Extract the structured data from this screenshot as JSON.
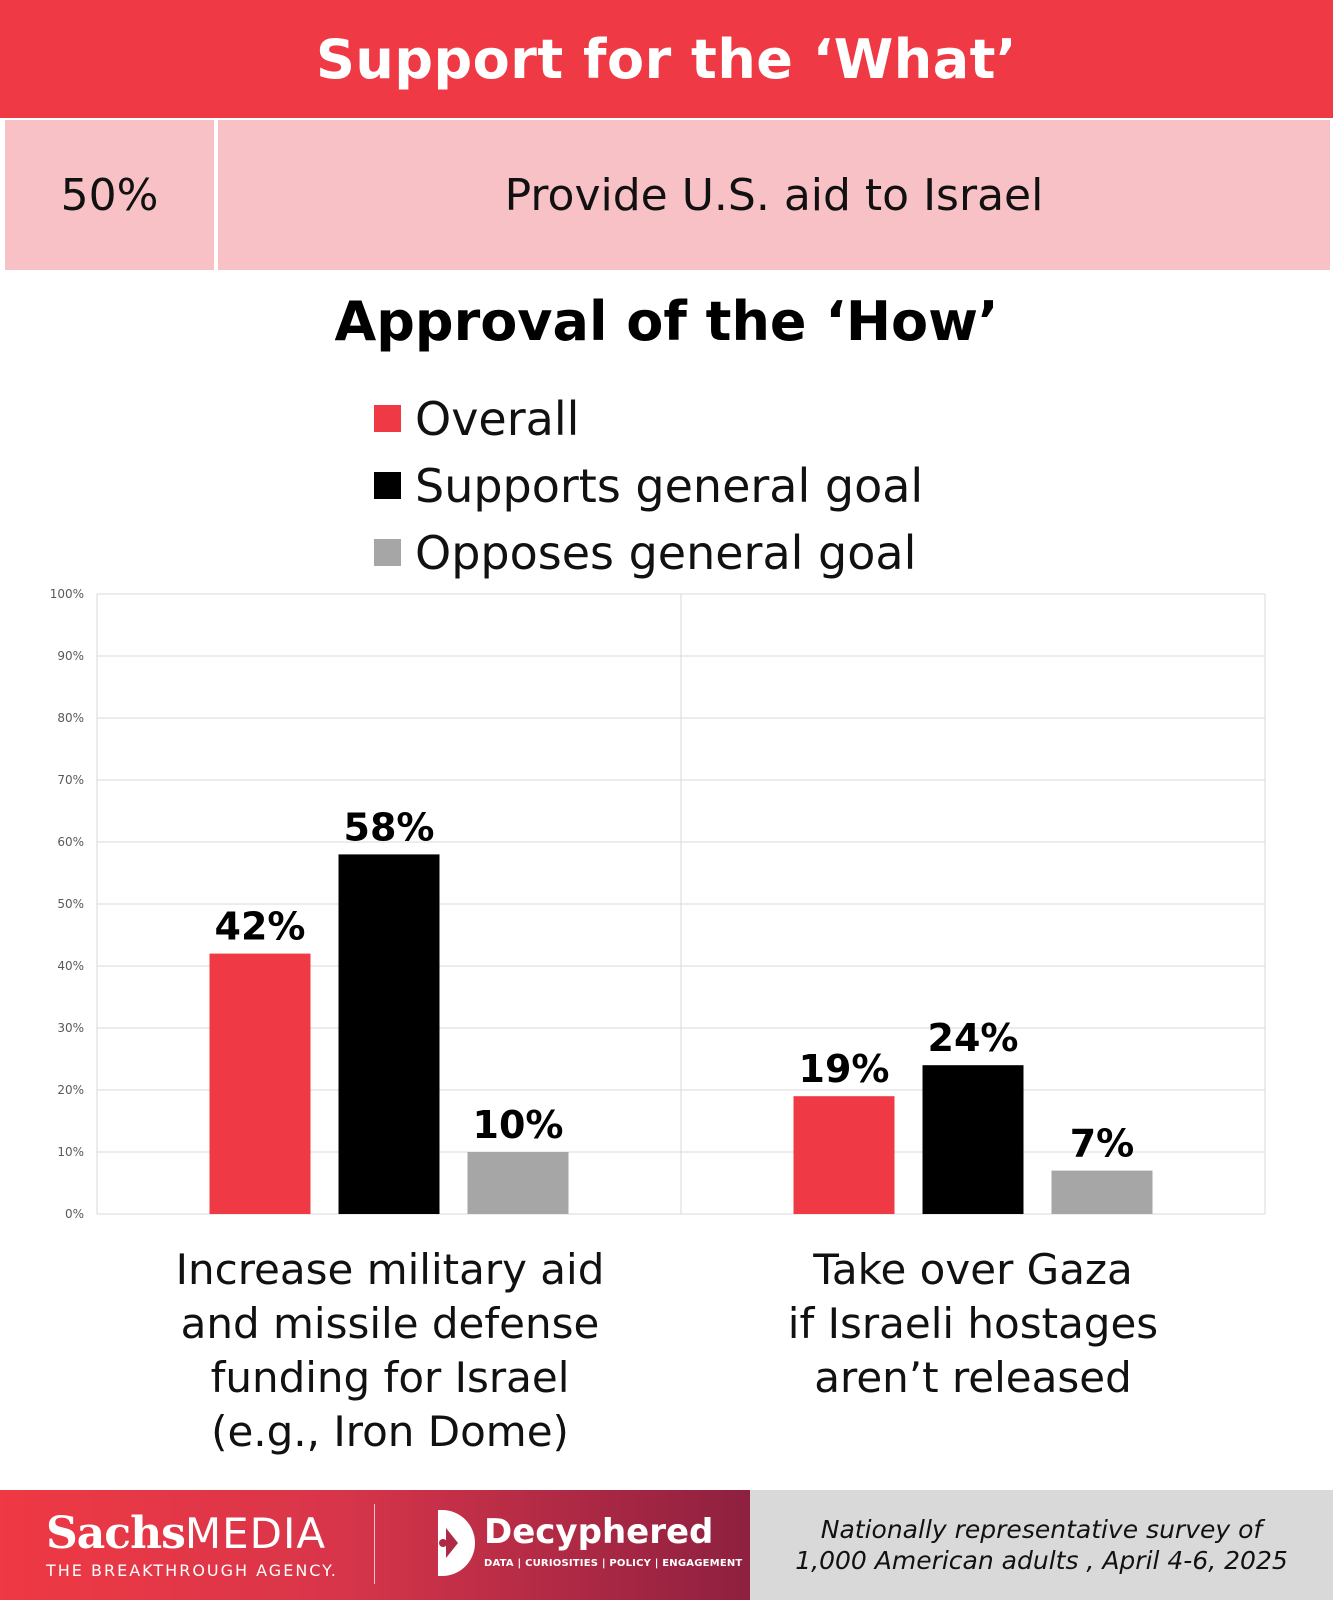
{
  "header": {
    "title": "Support for the ‘What’"
  },
  "support_row": {
    "percent": "50%",
    "text": "Provide U.S. aid to Israel"
  },
  "chart_data": {
    "type": "bar",
    "title": "Approval of the ‘How’",
    "categories": [
      [
        "Increase military aid",
        "and missile defense",
        "funding for Israel",
        "(e.g., Iron Dome)"
      ],
      [
        "Take over Gaza",
        "if Israeli hostages",
        "aren’t released"
      ]
    ],
    "series": [
      {
        "name": "Overall",
        "color": "#ef3944",
        "values": [
          42,
          19
        ]
      },
      {
        "name": "Supports general goal",
        "color": "#000000",
        "values": [
          58,
          24
        ]
      },
      {
        "name": "Opposes general goal",
        "color": "#a6a6a6",
        "values": [
          10,
          7
        ]
      }
    ],
    "ylim": [
      0,
      100
    ],
    "y_ticks": [
      "0%",
      "10%",
      "20%",
      "30%",
      "40%",
      "50%",
      "60%",
      "70%",
      "80%",
      "90%",
      "100%"
    ],
    "data_label_suffix": "%",
    "grid": true,
    "legend_position": "top"
  },
  "footer": {
    "sachs": {
      "word1": "Sachs",
      "word2": "MEDIA",
      "tagline": "THE BREAKTHROUGH AGENCY."
    },
    "decyphered": {
      "name": "Decyphered",
      "tagline": "DATA | CURIOSITIES | POLICY | ENGAGEMENT"
    },
    "note_line1": "Nationally representative survey of",
    "note_line2": "1,000 American adults , April 4-6, 2025"
  }
}
